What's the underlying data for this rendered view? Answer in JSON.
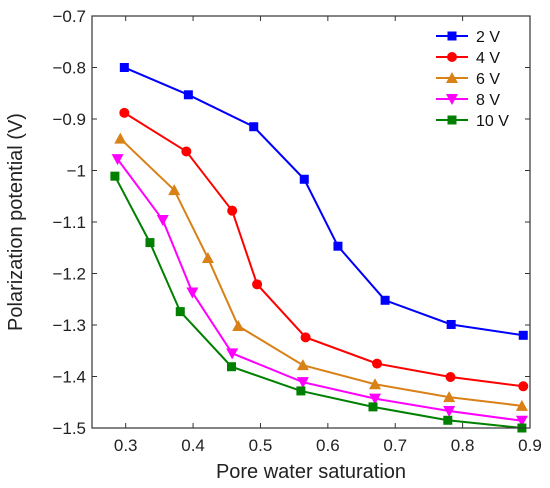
{
  "chart_data": {
    "type": "line",
    "xlabel": "Pore water saturation",
    "ylabel": "Polarization potential (V)",
    "xlim": [
      0.25,
      0.9
    ],
    "ylim": [
      -1.5,
      -0.7
    ],
    "xticks": [
      0.3,
      0.4,
      0.5,
      0.6,
      0.7,
      0.8,
      0.9
    ],
    "yticks": [
      -1.5,
      -1.4,
      -1.3,
      -1.2,
      -1.1,
      -1.0,
      -0.9,
      -0.8,
      -0.7
    ],
    "xtick_labels": [
      "0.3",
      "0.4",
      "0.5",
      "0.6",
      "0.7",
      "0.8",
      "0.9"
    ],
    "ytick_labels": [
      "−1.5",
      "−1.4",
      "−1.3",
      "−1.2",
      "−1.1",
      "−1",
      "−0.9",
      "−0.8",
      "−0.7"
    ],
    "grid": false,
    "legend_position": "top-right",
    "series": [
      {
        "name": "2 V",
        "color": "#0000ff",
        "marker": "square",
        "x": [
          0.298,
          0.393,
          0.49,
          0.565,
          0.615,
          0.685,
          0.783,
          0.89
        ],
        "y": [
          -0.8,
          -0.853,
          -0.915,
          -1.017,
          -1.147,
          -1.252,
          -1.299,
          -1.32
        ]
      },
      {
        "name": "4 V",
        "color": "#ff0000",
        "marker": "circle",
        "x": [
          0.298,
          0.39,
          0.458,
          0.495,
          0.567,
          0.673,
          0.782,
          0.89
        ],
        "y": [
          -0.888,
          -0.963,
          -1.078,
          -1.221,
          -1.324,
          -1.375,
          -1.401,
          -1.419
        ]
      },
      {
        "name": "6 V",
        "color": "#d98016",
        "marker": "triangle-up",
        "x": [
          0.292,
          0.372,
          0.422,
          0.467,
          0.563,
          0.67,
          0.78,
          0.888
        ],
        "y": [
          -0.938,
          -1.038,
          -1.17,
          -1.302,
          -1.378,
          -1.415,
          -1.44,
          -1.457
        ]
      },
      {
        "name": "8 V",
        "color": "#ff00ff",
        "marker": "triangle-down",
        "x": [
          0.288,
          0.355,
          0.399,
          0.458,
          0.563,
          0.67,
          0.78,
          0.888
        ],
        "y": [
          -0.978,
          -1.096,
          -1.237,
          -1.355,
          -1.411,
          -1.443,
          -1.467,
          -1.486
        ]
      },
      {
        "name": "10 V",
        "color": "#008000",
        "marker": "square",
        "x": [
          0.284,
          0.336,
          0.381,
          0.457,
          0.56,
          0.667,
          0.778,
          0.888
        ],
        "y": [
          -1.011,
          -1.14,
          -1.274,
          -1.381,
          -1.428,
          -1.459,
          -1.485,
          -1.5
        ]
      }
    ]
  }
}
